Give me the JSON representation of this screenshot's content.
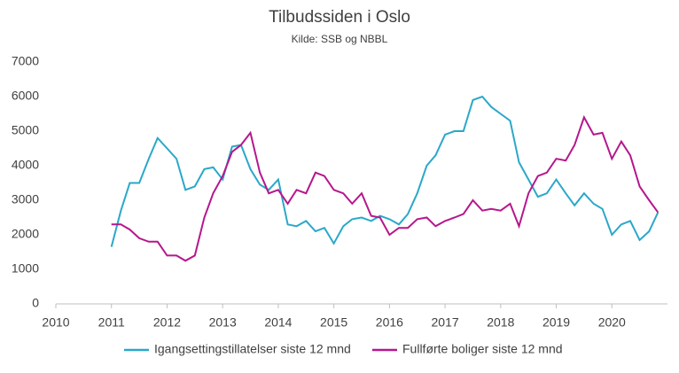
{
  "chart_data": {
    "type": "line",
    "title": "Tilbudssiden i Oslo",
    "subtitle": "Kilde: SSB og NBBL",
    "x": [
      2011.0,
      2011.17,
      2011.33,
      2011.5,
      2011.67,
      2011.83,
      2012.0,
      2012.17,
      2012.33,
      2012.5,
      2012.67,
      2012.83,
      2013.0,
      2013.17,
      2013.33,
      2013.5,
      2013.67,
      2013.83,
      2014.0,
      2014.17,
      2014.33,
      2014.5,
      2014.67,
      2014.83,
      2015.0,
      2015.17,
      2015.33,
      2015.5,
      2015.67,
      2015.83,
      2016.0,
      2016.17,
      2016.33,
      2016.5,
      2016.67,
      2016.83,
      2017.0,
      2017.17,
      2017.33,
      2017.5,
      2017.67,
      2017.83,
      2018.0,
      2018.17,
      2018.33,
      2018.5,
      2018.67,
      2018.83,
      2019.0,
      2019.17,
      2019.33,
      2019.5,
      2019.67,
      2019.83,
      2020.0,
      2020.17,
      2020.33,
      2020.5,
      2020.67,
      2020.83
    ],
    "series": [
      {
        "name": "Igangsettingstillatelser siste 12 mnd",
        "color": "#2aa8c9",
        "values": [
          1650,
          2700,
          3500,
          3500,
          4200,
          4800,
          4500,
          4200,
          3300,
          3400,
          3900,
          3950,
          3600,
          4550,
          4600,
          3900,
          3450,
          3300,
          3600,
          2300,
          2250,
          2400,
          2100,
          2200,
          1750,
          2250,
          2450,
          2500,
          2400,
          2550,
          2450,
          2300,
          2600,
          3200,
          4000,
          4300,
          4900,
          5000,
          5000,
          5900,
          6000,
          5700,
          5500,
          5300,
          4100,
          3600,
          3100,
          3200,
          3600,
          3200,
          2850,
          3200,
          2900,
          2750,
          2000,
          2300,
          2400,
          1850,
          2100,
          2650
        ]
      },
      {
        "name": "Fullførte boliger siste 12 mnd",
        "color": "#b5178d",
        "values": [
          2300,
          2300,
          2150,
          1900,
          1800,
          1800,
          1400,
          1400,
          1250,
          1400,
          2500,
          3200,
          3700,
          4400,
          4600,
          4950,
          3800,
          3200,
          3300,
          2900,
          3300,
          3200,
          3800,
          3700,
          3300,
          3200,
          2900,
          3200,
          2550,
          2500,
          2000,
          2200,
          2200,
          2450,
          2500,
          2250,
          2400,
          2500,
          2600,
          3000,
          2700,
          2750,
          2700,
          2900,
          2250,
          3200,
          3700,
          3800,
          4200,
          4150,
          4600,
          5400,
          4900,
          4950,
          4200,
          4700,
          4300,
          3400,
          3000,
          2650
        ]
      }
    ],
    "xlim": [
      2010,
      2021
    ],
    "xticks": [
      2010,
      2011,
      2012,
      2013,
      2014,
      2015,
      2016,
      2017,
      2018,
      2019,
      2020
    ],
    "ylim": [
      0,
      7000
    ],
    "yticks": [
      0,
      1000,
      2000,
      3000,
      4000,
      5000,
      6000,
      7000
    ],
    "grid": false,
    "legend": "bottom"
  }
}
